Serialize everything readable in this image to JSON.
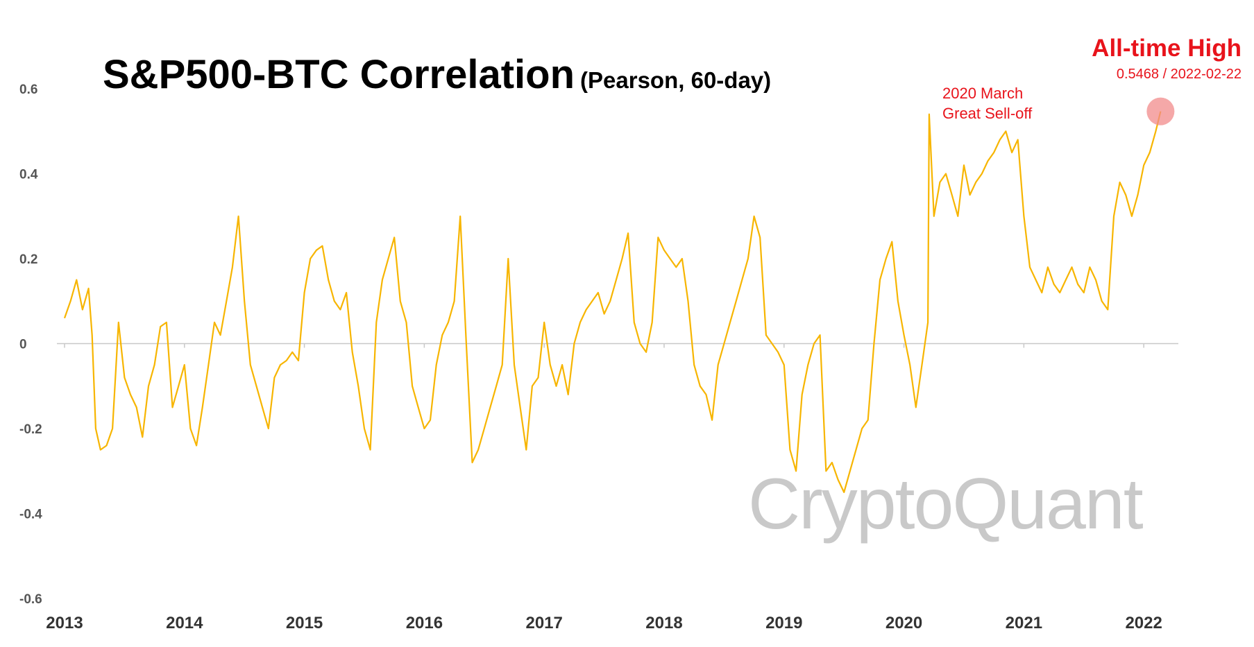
{
  "title": "S&P500-BTC Correlation",
  "subtitle": "(Pearson, 60-day)",
  "annotations": {
    "march_line1": "2020 March",
    "march_line2": "Great Sell-off",
    "ath_title": "All-time High",
    "ath_value": "0.5468 / 2022-02-22"
  },
  "watermark": "CryptoQuant",
  "colors": {
    "series": "#f7b500",
    "annotation": "#e8131b",
    "highlight": "#f28b8b",
    "axis": "#c8c8c8"
  },
  "chart_data": {
    "type": "line",
    "title": "S&P500-BTC Correlation",
    "subtitle": "(Pearson, 60-day)",
    "xlim": [
      2013.0,
      2022.3
    ],
    "ylim": [
      -0.6,
      0.6
    ],
    "xticks": [
      2013,
      2014,
      2015,
      2016,
      2017,
      2018,
      2019,
      2020,
      2021,
      2022
    ],
    "yticks": [
      0.6,
      0.4,
      0.2,
      0,
      -0.2,
      -0.4,
      -0.6
    ],
    "ytick_labels": [
      "0.6",
      "0.4",
      "0.2",
      "0",
      "-0.2",
      "-0.4",
      "-0.6"
    ],
    "grid": false,
    "legend": "none",
    "highlight_point": {
      "x": 2022.14,
      "y": 0.5468
    },
    "series": [
      {
        "x": [
          2013.0,
          2013.05,
          2013.1,
          2013.15,
          2013.2,
          2013.23,
          2013.26,
          2013.3,
          2013.35,
          2013.4,
          2013.45,
          2013.5,
          2013.55,
          2013.6,
          2013.65,
          2013.7,
          2013.75,
          2013.8,
          2013.85,
          2013.9,
          2013.95,
          2014.0,
          2014.05,
          2014.1,
          2014.15,
          2014.2,
          2014.25,
          2014.3,
          2014.35,
          2014.4,
          2014.45,
          2014.5,
          2014.55,
          2014.6,
          2014.65,
          2014.7,
          2014.75,
          2014.8,
          2014.85,
          2014.9,
          2014.95,
          2015.0,
          2015.05,
          2015.1,
          2015.15,
          2015.2,
          2015.25,
          2015.3,
          2015.35,
          2015.4,
          2015.45,
          2015.5,
          2015.55,
          2015.6,
          2015.65,
          2015.7,
          2015.75,
          2015.8,
          2015.85,
          2015.9,
          2015.95,
          2016.0,
          2016.05,
          2016.1,
          2016.15,
          2016.2,
          2016.25,
          2016.3,
          2016.35,
          2016.4,
          2016.45,
          2016.5,
          2016.55,
          2016.6,
          2016.65,
          2016.7,
          2016.75,
          2016.8,
          2016.85,
          2016.9,
          2016.95,
          2017.0,
          2017.05,
          2017.1,
          2017.15,
          2017.2,
          2017.25,
          2017.3,
          2017.35,
          2017.4,
          2017.45,
          2017.5,
          2017.55,
          2017.6,
          2017.65,
          2017.7,
          2017.75,
          2017.8,
          2017.85,
          2017.9,
          2017.95,
          2018.0,
          2018.05,
          2018.1,
          2018.15,
          2018.2,
          2018.25,
          2018.3,
          2018.35,
          2018.4,
          2018.45,
          2018.5,
          2018.55,
          2018.6,
          2018.65,
          2018.7,
          2018.75,
          2018.8,
          2018.85,
          2018.9,
          2018.95,
          2019.0,
          2019.05,
          2019.1,
          2019.15,
          2019.2,
          2019.25,
          2019.3,
          2019.35,
          2019.4,
          2019.45,
          2019.5,
          2019.55,
          2019.6,
          2019.65,
          2019.7,
          2019.75,
          2019.8,
          2019.85,
          2019.9,
          2019.95,
          2020.0,
          2020.05,
          2020.1,
          2020.15,
          2020.2,
          2020.21,
          2020.25,
          2020.3,
          2020.35,
          2020.4,
          2020.45,
          2020.5,
          2020.55,
          2020.6,
          2020.65,
          2020.7,
          2020.75,
          2020.8,
          2020.85,
          2020.9,
          2020.95,
          2021.0,
          2021.05,
          2021.1,
          2021.15,
          2021.2,
          2021.25,
          2021.3,
          2021.35,
          2021.4,
          2021.45,
          2021.5,
          2021.55,
          2021.6,
          2021.65,
          2021.7,
          2021.75,
          2021.8,
          2021.85,
          2021.9,
          2021.95,
          2022.0,
          2022.05,
          2022.1,
          2022.14
        ],
        "y": [
          0.06,
          0.1,
          0.15,
          0.08,
          0.13,
          0.02,
          -0.2,
          -0.25,
          -0.24,
          -0.2,
          0.05,
          -0.08,
          -0.12,
          -0.15,
          -0.22,
          -0.1,
          -0.05,
          0.04,
          0.05,
          -0.15,
          -0.1,
          -0.05,
          -0.2,
          -0.24,
          -0.15,
          -0.05,
          0.05,
          0.02,
          0.1,
          0.18,
          0.3,
          0.1,
          -0.05,
          -0.1,
          -0.15,
          -0.2,
          -0.08,
          -0.05,
          -0.04,
          -0.02,
          -0.04,
          0.12,
          0.2,
          0.22,
          0.23,
          0.15,
          0.1,
          0.08,
          0.12,
          -0.02,
          -0.1,
          -0.2,
          -0.25,
          0.05,
          0.15,
          0.2,
          0.25,
          0.1,
          0.05,
          -0.1,
          -0.15,
          -0.2,
          -0.18,
          -0.05,
          0.02,
          0.05,
          0.1,
          0.3,
          0.0,
          -0.28,
          -0.25,
          -0.2,
          -0.15,
          -0.1,
          -0.05,
          0.2,
          -0.05,
          -0.15,
          -0.25,
          -0.1,
          -0.08,
          0.05,
          -0.05,
          -0.1,
          -0.05,
          -0.12,
          0.0,
          0.05,
          0.08,
          0.1,
          0.12,
          0.07,
          0.1,
          0.15,
          0.2,
          0.26,
          0.05,
          0.0,
          -0.02,
          0.05,
          0.25,
          0.22,
          0.2,
          0.18,
          0.2,
          0.1,
          -0.05,
          -0.1,
          -0.12,
          -0.18,
          -0.05,
          0.0,
          0.05,
          0.1,
          0.15,
          0.2,
          0.3,
          0.25,
          0.02,
          0.0,
          -0.02,
          -0.05,
          -0.25,
          -0.3,
          -0.12,
          -0.05,
          0.0,
          0.02,
          -0.3,
          -0.28,
          -0.32,
          -0.35,
          -0.3,
          -0.25,
          -0.2,
          -0.18,
          0.0,
          0.15,
          0.2,
          0.24,
          0.1,
          0.02,
          -0.05,
          -0.15,
          -0.05,
          0.05,
          0.54,
          0.3,
          0.38,
          0.4,
          0.35,
          0.3,
          0.42,
          0.35,
          0.38,
          0.4,
          0.43,
          0.45,
          0.48,
          0.5,
          0.45,
          0.48,
          0.3,
          0.18,
          0.15,
          0.12,
          0.18,
          0.14,
          0.12,
          0.15,
          0.18,
          0.14,
          0.12,
          0.18,
          0.15,
          0.1,
          0.08,
          0.3,
          0.38,
          0.35,
          0.3,
          0.35,
          0.42,
          0.45,
          0.5,
          0.5468
        ]
      }
    ]
  }
}
